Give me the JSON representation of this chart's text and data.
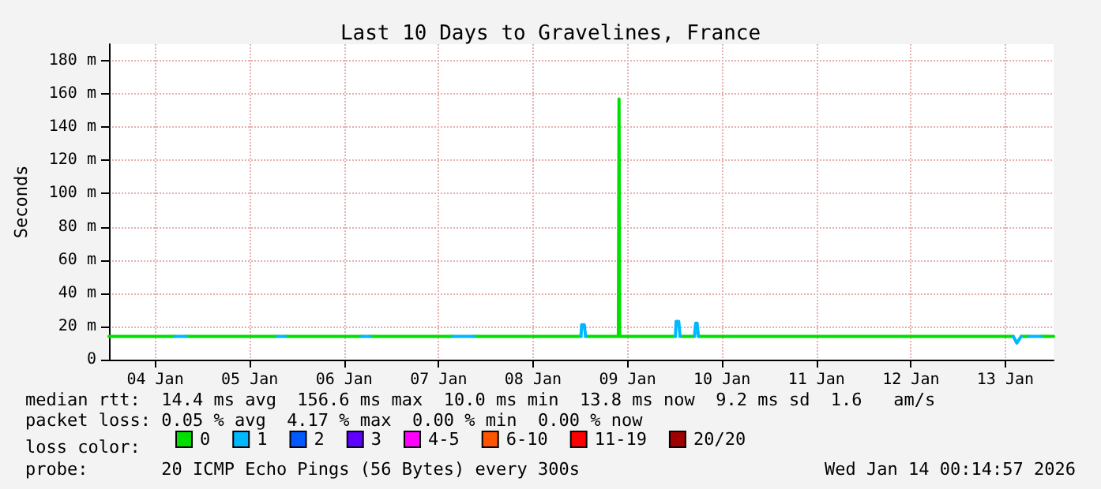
{
  "chart_data": {
    "type": "line",
    "title": "Last 10 Days to Gravelines, France",
    "ylabel": "Seconds",
    "legend_title": "loss color:",
    "xlim": [
      "2026-01-04T00:15",
      "2026-01-14T00:15"
    ],
    "xticks": [
      {
        "value": "2026-01-04T12:00",
        "label": "04 Jan"
      },
      {
        "value": "2026-01-05T12:00",
        "label": "05 Jan"
      },
      {
        "value": "2026-01-06T12:00",
        "label": "06 Jan"
      },
      {
        "value": "2026-01-07T12:00",
        "label": "07 Jan"
      },
      {
        "value": "2026-01-08T12:00",
        "label": "08 Jan"
      },
      {
        "value": "2026-01-09T12:00",
        "label": "09 Jan"
      },
      {
        "value": "2026-01-10T12:00",
        "label": "10 Jan"
      },
      {
        "value": "2026-01-11T12:00",
        "label": "11 Jan"
      },
      {
        "value": "2026-01-12T12:00",
        "label": "12 Jan"
      },
      {
        "value": "2026-01-13T12:00",
        "label": "13 Jan"
      }
    ],
    "ylim": [
      0,
      190
    ],
    "yticks": [
      0,
      {
        "value": 20,
        "label": "20 m"
      },
      {
        "value": 40,
        "label": "40 m"
      },
      {
        "value": 60,
        "label": "60 m"
      },
      {
        "value": 80,
        "label": "80 m"
      },
      {
        "value": 100,
        "label": "100 m"
      },
      {
        "value": 120,
        "label": "120 m"
      },
      {
        "value": 140,
        "label": "140 m"
      },
      {
        "value": 160,
        "label": "160 m"
      },
      {
        "value": 180,
        "label": "180 m"
      }
    ],
    "grid": true,
    "legend": "bottom",
    "marker": "none",
    "line_style": "solid",
    "series": [
      {
        "name": "0",
        "color": "#00e000",
        "x": [
          "2026-01-04T00:15",
          "2026-01-04T17:00",
          "2026-01-04T18:00",
          "2026-01-04T19:50",
          "2026-01-05T19:00",
          "2026-01-05T20:00",
          "2026-01-05T21:00",
          "2026-01-06T16:30",
          "2026-01-06T17:30",
          "2026-01-06T18:30",
          "2026-01-07T15:30",
          "2026-01-07T18:00",
          "2026-01-07T21:00",
          "2026-01-09T00:10",
          "2026-01-09T01:00",
          "2026-01-09T01:20",
          "2026-01-09T09:40",
          "2026-01-09T09:50",
          "2026-01-09T10:00",
          "2026-01-10T00:10",
          "2026-01-10T00:40",
          "2026-01-10T01:20",
          "2026-01-10T05:00",
          "2026-01-10T05:30",
          "2026-01-10T06:00",
          "2026-01-13T14:00",
          "2026-01-13T15:00",
          "2026-01-13T16:00",
          "2026-01-13T18:00",
          "2026-01-13T19:00",
          "2026-01-13T21:00",
          "2026-01-14T00:15"
        ],
        "values": [
          14,
          14,
          null,
          14,
          14,
          null,
          14,
          14,
          null,
          14,
          14,
          null,
          14,
          14,
          null,
          14,
          14,
          157,
          14,
          14,
          null,
          14,
          14,
          null,
          14,
          14,
          null,
          14,
          14,
          null,
          14,
          14
        ]
      },
      {
        "name": "1",
        "color": "#00b8ff",
        "x": [
          "2026-01-04T17:00",
          "2026-01-04T19:50",
          "2026-01-05T00:00",
          "2026-01-05T19:00",
          "2026-01-05T21:00",
          "2026-01-06T00:00",
          "2026-01-06T16:30",
          "2026-01-06T18:30",
          "2026-01-07T00:00",
          "2026-01-07T15:30",
          "2026-01-07T21:00",
          "2026-01-08T00:00",
          "2026-01-09T00:10",
          "2026-01-09T00:20",
          "2026-01-09T01:00",
          "2026-01-09T01:20",
          "2026-01-09T12:00",
          "2026-01-10T00:10",
          "2026-01-10T00:20",
          "2026-01-10T01:00",
          "2026-01-10T01:20",
          "2026-01-10T03:00",
          "2026-01-10T05:00",
          "2026-01-10T05:20",
          "2026-01-10T05:40",
          "2026-01-10T06:00",
          "2026-01-11T00:00",
          "2026-01-13T14:00",
          "2026-01-13T14:55",
          "2026-01-13T16:00",
          "2026-01-13T17:00",
          "2026-01-13T18:00",
          "2026-01-13T21:00"
        ],
        "values": [
          14,
          14,
          null,
          14,
          14,
          null,
          14,
          14,
          null,
          14,
          14,
          null,
          14,
          21,
          21,
          14,
          null,
          14,
          23,
          23,
          14,
          null,
          14,
          22,
          22,
          14,
          null,
          14,
          10,
          14,
          null,
          14,
          14
        ]
      },
      {
        "name": "2",
        "color": "#0059ff"
      },
      {
        "name": "3",
        "color": "#5e00ff"
      },
      {
        "name": "4-5",
        "color": "#ff00ff"
      },
      {
        "name": "6-10",
        "color": "#ff5500"
      },
      {
        "name": "11-19",
        "color": "#ff0000"
      },
      {
        "name": "20/20",
        "color": "#a10000"
      }
    ],
    "annotations": [
      "median rtt:  14.4 ms avg  156.6 ms max  10.0 ms min  13.8 ms now  9.2 ms sd  1.6   am/s",
      "packet loss: 0.05 % avg  4.17 % max  0.00 % min  0.00 % now",
      "probe:       20 ICMP Echo Pings (56 Bytes) every 300s",
      "Wed Jan 14 00:14:57 2026"
    ]
  }
}
